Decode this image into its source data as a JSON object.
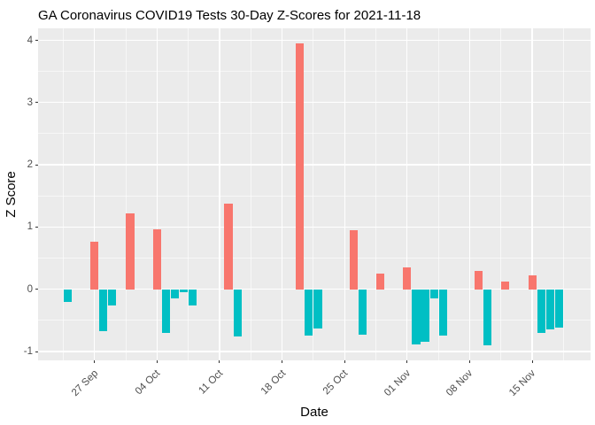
{
  "chart_data": {
    "type": "bar",
    "title": "GA Coronavirus COVID19 Tests 30-Day Z-Scores for 2021-11-18",
    "xlabel": "Date",
    "ylabel": "Z Score",
    "ylim": [
      -1.14,
      4.19
    ],
    "grid": true,
    "legend": "none",
    "y_ticks": [
      -1,
      0,
      1,
      2,
      3,
      4
    ],
    "y_minor_ticks": [
      -0.5,
      0.5,
      1.5,
      2.5,
      3.5
    ],
    "x_ticks": [
      {
        "label": "27 Sep",
        "date": "2021-09-27"
      },
      {
        "label": "04 Oct",
        "date": "2021-10-04"
      },
      {
        "label": "11 Oct",
        "date": "2021-10-11"
      },
      {
        "label": "18 Oct",
        "date": "2021-10-18"
      },
      {
        "label": "25 Oct",
        "date": "2021-10-25"
      },
      {
        "label": "01 Nov",
        "date": "2021-11-01"
      },
      {
        "label": "08 Nov",
        "date": "2021-11-08"
      },
      {
        "label": "15 Nov",
        "date": "2021-11-15"
      }
    ],
    "bars": [
      {
        "date": "2021-09-24",
        "value": -0.21
      },
      {
        "date": "2021-09-27",
        "value": 0.77
      },
      {
        "date": "2021-09-28",
        "value": -0.67
      },
      {
        "date": "2021-09-29",
        "value": -0.26
      },
      {
        "date": "2021-10-01",
        "value": 1.22
      },
      {
        "date": "2021-10-04",
        "value": 0.96
      },
      {
        "date": "2021-10-05",
        "value": -0.7
      },
      {
        "date": "2021-10-06",
        "value": -0.14
      },
      {
        "date": "2021-10-07",
        "value": -0.05
      },
      {
        "date": "2021-10-08",
        "value": -0.26
      },
      {
        "date": "2021-10-12",
        "value": 1.37
      },
      {
        "date": "2021-10-13",
        "value": -0.76
      },
      {
        "date": "2021-10-20",
        "value": 3.95
      },
      {
        "date": "2021-10-21",
        "value": -0.75
      },
      {
        "date": "2021-10-22",
        "value": -0.63
      },
      {
        "date": "2021-10-26",
        "value": 0.95
      },
      {
        "date": "2021-10-27",
        "value": -0.73
      },
      {
        "date": "2021-10-29",
        "value": 0.25
      },
      {
        "date": "2021-11-01",
        "value": 0.35
      },
      {
        "date": "2021-11-02",
        "value": -0.89
      },
      {
        "date": "2021-11-03",
        "value": -0.85
      },
      {
        "date": "2021-11-04",
        "value": -0.14
      },
      {
        "date": "2021-11-05",
        "value": -0.74
      },
      {
        "date": "2021-11-09",
        "value": 0.3
      },
      {
        "date": "2021-11-10",
        "value": -0.9
      },
      {
        "date": "2021-11-12",
        "value": 0.13
      },
      {
        "date": "2021-11-15",
        "value": 0.23
      },
      {
        "date": "2021-11-16",
        "value": -0.7
      },
      {
        "date": "2021-11-17",
        "value": -0.64
      },
      {
        "date": "2021-11-18",
        "value": -0.62
      }
    ],
    "colors": {
      "positive_bar": "#F8766D",
      "negative_bar": "#00BFC4",
      "panel_background": "#EBEBEB",
      "gridline": "#FFFFFF",
      "axis_text": "#4D4D4D",
      "tick_mark": "#333333",
      "title_text": "#000000",
      "figure_background": "#FFFFFF"
    }
  }
}
